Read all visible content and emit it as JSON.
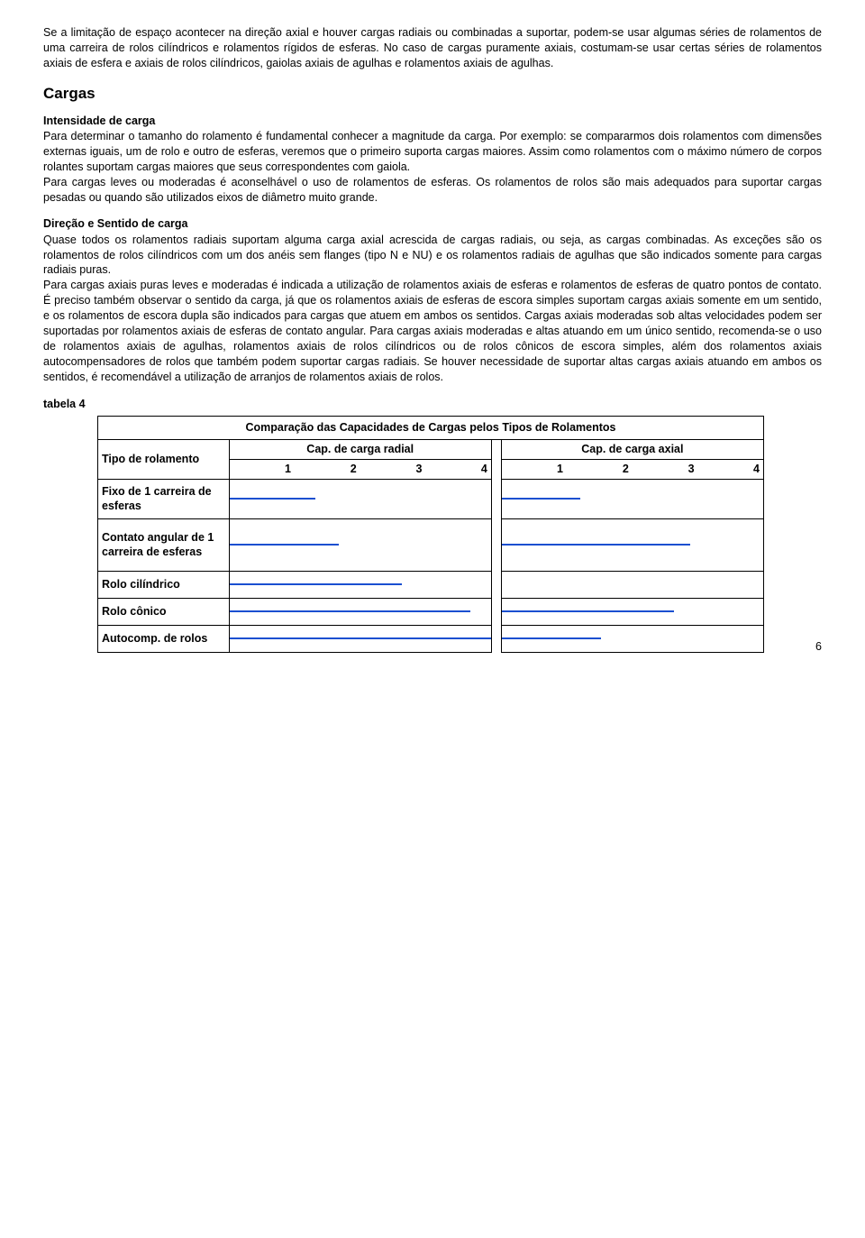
{
  "intro": "Se a limitação de espaço acontecer na direção axial e houver cargas radiais ou combinadas a suportar, podem-se usar algumas séries de rolamentos de uma carreira de rolos cilíndricos e rolamentos rígidos de esferas. No caso de cargas puramente axiais, costumam-se usar certas séries de rolamentos axiais de esfera e axiais de rolos cilíndricos, gaiolas axiais de agulhas e rolamentos axiais de agulhas.",
  "section_title": "Cargas",
  "intensity": {
    "title": "Intensidade de carga",
    "text": "Para determinar o tamanho do rolamento é fundamental conhecer a magnitude da carga. Por exemplo: se compararmos dois rolamentos com dimensões externas iguais, um de rolo e outro de esferas, veremos que o primeiro suporta cargas maiores. Assim como rolamentos com o máximo número de corpos rolantes suportam cargas maiores que seus correspondentes com gaiola.\nPara cargas leves ou moderadas é aconselhável o uso de rolamentos de esferas. Os rolamentos de rolos são mais adequados para suportar cargas pesadas ou quando são utilizados eixos de diâmetro muito grande."
  },
  "direction": {
    "title": "Direção e Sentido de carga",
    "text": "Quase todos os rolamentos radiais suportam alguma carga axial acrescida de cargas radiais, ou seja, as cargas combinadas. As exceções são os rolamentos de rolos cilíndricos com um dos anéis sem flanges (tipo N e NU) e os rolamentos radiais de agulhas que são indicados somente para cargas radiais puras.\nPara cargas axiais puras leves e moderadas é indicada a utilização de rolamentos axiais de esferas e rolamentos de esferas de quatro pontos de contato. É preciso também observar o sentido da carga, já que os rolamentos axiais de esferas de escora simples suportam cargas axiais somente em um sentido, e os rolamentos de escora dupla são indicados para cargas que atuem em ambos os sentidos. Cargas axiais moderadas sob altas velocidades podem ser suportadas por rolamentos axiais de esferas de contato angular. Para cargas axiais moderadas e altas atuando em um único sentido, recomenda-se o uso de rolamentos axiais de agulhas, rolamentos axiais de rolos cilíndricos ou de rolos cônicos de escora simples, além dos rolamentos axiais autocompensadores de rolos que também podem suportar cargas radiais. Se houver necessidade de suportar altas cargas axiais atuando em ambos os sentidos, é recomendável a utilização de arranjos de rolamentos axiais de rolos."
  },
  "table": {
    "label": "tabela 4",
    "title": "Comparação das Capacidades de Cargas pelos Tipos de Rolamentos",
    "type_header": "Tipo de rolamento",
    "radial_header": "Cap. de carga radial",
    "axial_header": "Cap. de carga axial",
    "col_nums": [
      "1",
      "2",
      "3",
      "4"
    ],
    "bar_color": "#1a4fd0",
    "rows": [
      {
        "label": "Fixo de 1 carreira de esferas",
        "radial_pct": 33,
        "axial_pct": 30
      },
      {
        "label": "Contato angular de 1 carreira de esferas",
        "radial_pct": 42,
        "axial_pct": 72
      },
      {
        "label": "Rolo cilíndrico",
        "radial_pct": 66,
        "axial_pct": 0
      },
      {
        "label": "Rolo cônico",
        "radial_pct": 92,
        "axial_pct": 66
      },
      {
        "label": "Autocomp. de rolos",
        "radial_pct": 100,
        "axial_pct": 38
      }
    ]
  },
  "page_number": "6"
}
